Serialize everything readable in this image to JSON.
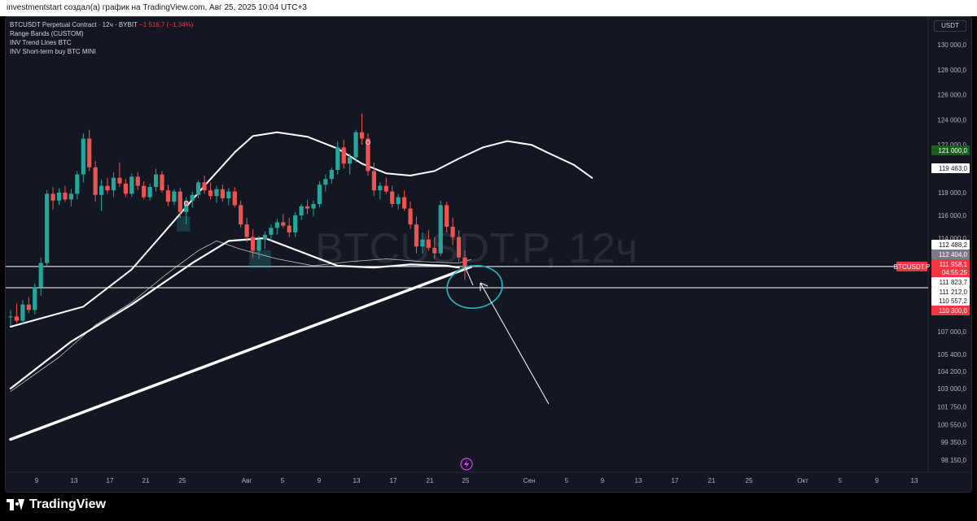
{
  "header": {
    "text": "investmentstart создал(а) график на TradingView.com, Авг 25, 2025 10:04 UTC+3"
  },
  "legend": {
    "symbol": "BTCUSDT Perpetual Contract · 12ч · BYBIT",
    "change": "−1 516,7 (−1,34%)",
    "indicators": [
      "Range Bands (CUSTOM)",
      "INV Trend Lines BTC",
      "INV Short-term buy BTC MINI"
    ]
  },
  "currency": "USDT",
  "watermark": "BTCUSDT.P, 12ч",
  "footer": {
    "logo_text": "TradingView"
  },
  "colors": {
    "up": "#26a69a",
    "down": "#ef5350",
    "band": "#ffffff",
    "annotation": "#29b6c8",
    "price_badge": "#f23645"
  },
  "chart_data": {
    "type": "candlestick",
    "symbol": "BTCUSDT.P",
    "timeframe": "12ч",
    "ylim": [
      98150,
      131000
    ],
    "y_ticks": [
      "130 000,0",
      "128 000,0",
      "126 000,0",
      "124 000,0",
      "122 000,0",
      "120 000,0",
      "118 000,0",
      "116 000,0",
      "114 000,0",
      "107 000,0",
      "105 400,0",
      "104 200,0",
      "103 000,0",
      "101 750,0",
      "100 550,0",
      "99 350,0",
      "98 150,0"
    ],
    "x_ticks": [
      "9",
      "13",
      "17",
      "21",
      "25",
      "Авг",
      "5",
      "9",
      "13",
      "17",
      "21",
      "25",
      "Сен",
      "5",
      "9",
      "13",
      "17",
      "21",
      "25",
      "Окт",
      "5",
      "9",
      "13"
    ],
    "price_badges": [
      {
        "label": "121 000,0",
        "value": 121000,
        "style": "green"
      },
      {
        "label": "119 463,0",
        "value": 119463,
        "style": "white"
      },
      {
        "label": "112 488,2",
        "value": 112488.2,
        "style": "white"
      },
      {
        "label": "112 404,0",
        "value": 112404,
        "style": "grey"
      },
      {
        "label": "111 958,1",
        "value": 111958.1,
        "style": "red"
      },
      {
        "label": "04:55:25",
        "value": 111700,
        "style": "red"
      },
      {
        "label": "111 823,7",
        "value": 111823.7,
        "style": "white"
      },
      {
        "label": "111 212,0",
        "value": 111212,
        "style": "white"
      },
      {
        "label": "110 557,2",
        "value": 110557.2,
        "style": "white"
      },
      {
        "label": "110 300,0",
        "value": 110300,
        "style": "red"
      }
    ],
    "symbol_badge": "BTCUSDT.P",
    "horizontal_lines": [
      111958,
      110760
    ],
    "candles": [
      [
        108350,
        109000,
        107500,
        108400
      ],
      [
        108400,
        109600,
        107800,
        108000
      ],
      [
        108000,
        109900,
        107700,
        109500
      ],
      [
        109500,
        110200,
        108700,
        109000
      ],
      [
        109000,
        111000,
        108600,
        110800
      ],
      [
        110800,
        112600,
        110300,
        112200
      ],
      [
        112200,
        118200,
        112000,
        117900
      ],
      [
        117900,
        118500,
        116500,
        117300
      ],
      [
        117300,
        118400,
        116900,
        118000
      ],
      [
        118000,
        118600,
        117200,
        117400
      ],
      [
        117400,
        118300,
        116800,
        117900
      ],
      [
        117900,
        119900,
        117400,
        119600
      ],
      [
        119600,
        122900,
        118900,
        122500
      ],
      [
        122500,
        123200,
        119900,
        120200
      ],
      [
        120200,
        120700,
        117200,
        117800
      ],
      [
        117800,
        119100,
        116400,
        118600
      ],
      [
        118600,
        119300,
        117900,
        118200
      ],
      [
        118200,
        119800,
        117600,
        119300
      ],
      [
        119300,
        120600,
        118500,
        118800
      ],
      [
        118800,
        119200,
        117600,
        117900
      ],
      [
        117900,
        119700,
        117600,
        119400
      ],
      [
        119400,
        119800,
        118200,
        118600
      ],
      [
        118600,
        119000,
        117400,
        117600
      ],
      [
        117600,
        118800,
        117300,
        118500
      ],
      [
        118500,
        120100,
        118100,
        119600
      ],
      [
        119600,
        119900,
        118000,
        118200
      ],
      [
        118200,
        118700,
        116800,
        117200
      ],
      [
        117200,
        118300,
        116900,
        118100
      ],
      [
        118100,
        118400,
        115800,
        116300
      ],
      [
        116300,
        117600,
        115200,
        117300
      ],
      [
        117300,
        118100,
        116700,
        117800
      ],
      [
        117800,
        119100,
        117500,
        118900
      ],
      [
        118900,
        119500,
        117900,
        118200
      ],
      [
        118200,
        118900,
        117400,
        117700
      ],
      [
        117700,
        118600,
        117100,
        118300
      ],
      [
        118300,
        118700,
        117200,
        117500
      ],
      [
        117500,
        118400,
        116900,
        118100
      ],
      [
        118100,
        118500,
        116700,
        116900
      ],
      [
        116900,
        117300,
        114900,
        115200
      ],
      [
        115200,
        115800,
        113700,
        114100
      ],
      [
        114100,
        114800,
        112600,
        113100
      ],
      [
        113100,
        114200,
        112500,
        113900
      ],
      [
        113900,
        114600,
        113200,
        114300
      ],
      [
        114300,
        115200,
        113800,
        114900
      ],
      [
        114900,
        115700,
        114300,
        115400
      ],
      [
        115400,
        116100,
        114900,
        115100
      ],
      [
        115100,
        115800,
        114100,
        114500
      ],
      [
        114500,
        116300,
        114100,
        116000
      ],
      [
        116000,
        117000,
        115600,
        116800
      ],
      [
        116800,
        117400,
        116100,
        116600
      ],
      [
        116600,
        117300,
        115900,
        117000
      ],
      [
        117000,
        119000,
        116700,
        118700
      ],
      [
        118700,
        119600,
        118100,
        119200
      ],
      [
        119200,
        120200,
        118800,
        120000
      ],
      [
        120000,
        122300,
        119600,
        121800
      ],
      [
        121800,
        122400,
        120100,
        120500
      ],
      [
        120500,
        121300,
        119600,
        121000
      ],
      [
        121000,
        123200,
        120600,
        123000
      ],
      [
        123000,
        124500,
        122000,
        122500
      ],
      [
        122500,
        122900,
        119500,
        119900
      ],
      [
        119900,
        120600,
        117700,
        118200
      ],
      [
        118200,
        118900,
        117400,
        118600
      ],
      [
        118600,
        119300,
        117900,
        118100
      ],
      [
        118100,
        118600,
        116700,
        117000
      ],
      [
        117000,
        117900,
        116500,
        117600
      ],
      [
        117600,
        118200,
        116400,
        116600
      ],
      [
        116600,
        117200,
        114800,
        115200
      ],
      [
        115200,
        115900,
        112900,
        113400
      ],
      [
        113400,
        114500,
        112900,
        113900
      ],
      [
        113900,
        114700,
        113100,
        113300
      ],
      [
        113300,
        114100,
        112500,
        112900
      ],
      [
        112900,
        117300,
        112700,
        116900
      ],
      [
        116900,
        117200,
        114500,
        115000
      ],
      [
        115000,
        115800,
        113500,
        114100
      ],
      [
        114100,
        114700,
        112300,
        112600
      ],
      [
        112600,
        113100,
        111200,
        111950
      ]
    ],
    "series": [
      {
        "name": "Range Bands upper",
        "points": [
          [
            0,
            107450
          ],
          [
            12,
            109300
          ],
          [
            20,
            111800
          ],
          [
            25,
            114300
          ],
          [
            32,
            118600
          ],
          [
            37,
            121400
          ],
          [
            40,
            122700
          ],
          [
            44,
            123000
          ],
          [
            49,
            122650
          ],
          [
            54,
            121700
          ],
          [
            58,
            120500
          ],
          [
            62,
            119700
          ],
          [
            66,
            119500
          ],
          [
            70,
            119900
          ],
          [
            74,
            120900
          ],
          [
            78,
            121800
          ],
          [
            82,
            122300
          ],
          [
            86,
            122000
          ],
          [
            89,
            121300
          ],
          [
            93,
            120400
          ],
          [
            96,
            119300
          ]
        ]
      },
      {
        "name": "Range Bands lower",
        "points": [
          [
            0,
            103000
          ],
          [
            10,
            106300
          ],
          [
            20,
            109500
          ],
          [
            30,
            112200
          ],
          [
            36,
            113800
          ],
          [
            42,
            114000
          ],
          [
            48,
            113000
          ],
          [
            54,
            112000
          ],
          [
            60,
            111900
          ],
          [
            66,
            112100
          ],
          [
            72,
            112000
          ],
          [
            74,
            111900
          ]
        ]
      },
      {
        "name": "INV Trend Lines BTC",
        "points": [
          [
            0,
            99550
          ],
          [
            76,
            111950
          ]
        ]
      },
      {
        "name": "INV Short-term buy BTC MINI",
        "points": [
          [
            0,
            102800
          ],
          [
            8,
            105200
          ],
          [
            14,
            107600
          ],
          [
            20,
            109700
          ],
          [
            26,
            111600
          ],
          [
            31,
            113100
          ],
          [
            34,
            113800
          ],
          [
            38,
            113200
          ],
          [
            44,
            112500
          ],
          [
            50,
            112000
          ],
          [
            56,
            112300
          ],
          [
            62,
            112500
          ],
          [
            68,
            112300
          ],
          [
            74,
            112200
          ],
          [
            76,
            112450
          ]
        ]
      }
    ]
  }
}
